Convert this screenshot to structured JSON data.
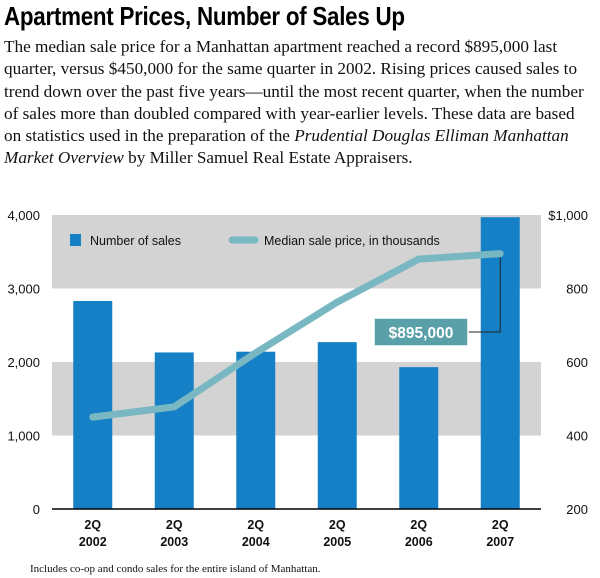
{
  "title": "Apartment Prices, Number of Sales Up",
  "intro": {
    "before_italic": "The median sale price for a Manhattan apartment reached a record $895,000 last quarter, versus $450,000 for the same quarter in 2002. Rising prices caused sales to trend down over the past five years—until the most recent quarter, when the number of sales more than doubled compared with year-earlier levels. These data are based on statistics used in the preparation of the ",
    "italic": "Prudential Douglas Elliman Manhattan Market Overview",
    "after_italic": " by Miller Samuel Real Estate Appraisers."
  },
  "footnote": "Includes co-op and condo sales for the entire island of Manhattan.",
  "colors": {
    "bar": "#1580c6",
    "line": "#79b7c2",
    "band": "#d3d3d3",
    "callout_bg": "#5aa0a8"
  },
  "chart_data": {
    "type": "bar",
    "categories": [
      {
        "line1": "2Q",
        "line2": "2002"
      },
      {
        "line1": "2Q",
        "line2": "2003"
      },
      {
        "line1": "2Q",
        "line2": "2004"
      },
      {
        "line1": "2Q",
        "line2": "2005"
      },
      {
        "line1": "2Q",
        "line2": "2006"
      },
      {
        "line1": "2Q",
        "line2": "2007"
      }
    ],
    "series": [
      {
        "name": "Number of sales",
        "type": "bar",
        "axis": "left",
        "values": [
          2830,
          2130,
          2140,
          2270,
          1930,
          3970
        ]
      },
      {
        "name": "Median sale price, in thousands",
        "type": "line",
        "axis": "right",
        "values": [
          450,
          478,
          625,
          763,
          880,
          895
        ]
      }
    ],
    "y_left": {
      "min": 0,
      "max": 4000,
      "ticks": [
        0,
        1000,
        2000,
        3000,
        4000
      ],
      "tick_labels": [
        "0",
        "1,000",
        "2,000",
        "3,000",
        "4,000"
      ]
    },
    "y_right": {
      "min": 200,
      "max": 1000,
      "ticks": [
        200,
        400,
        600,
        800,
        1000
      ],
      "tick_labels": [
        "200",
        "400",
        "600",
        "800",
        "$1,000"
      ]
    },
    "annotation": {
      "text": "$895,000",
      "series_index": 1,
      "point_index": 5
    },
    "legend_position": "top"
  }
}
